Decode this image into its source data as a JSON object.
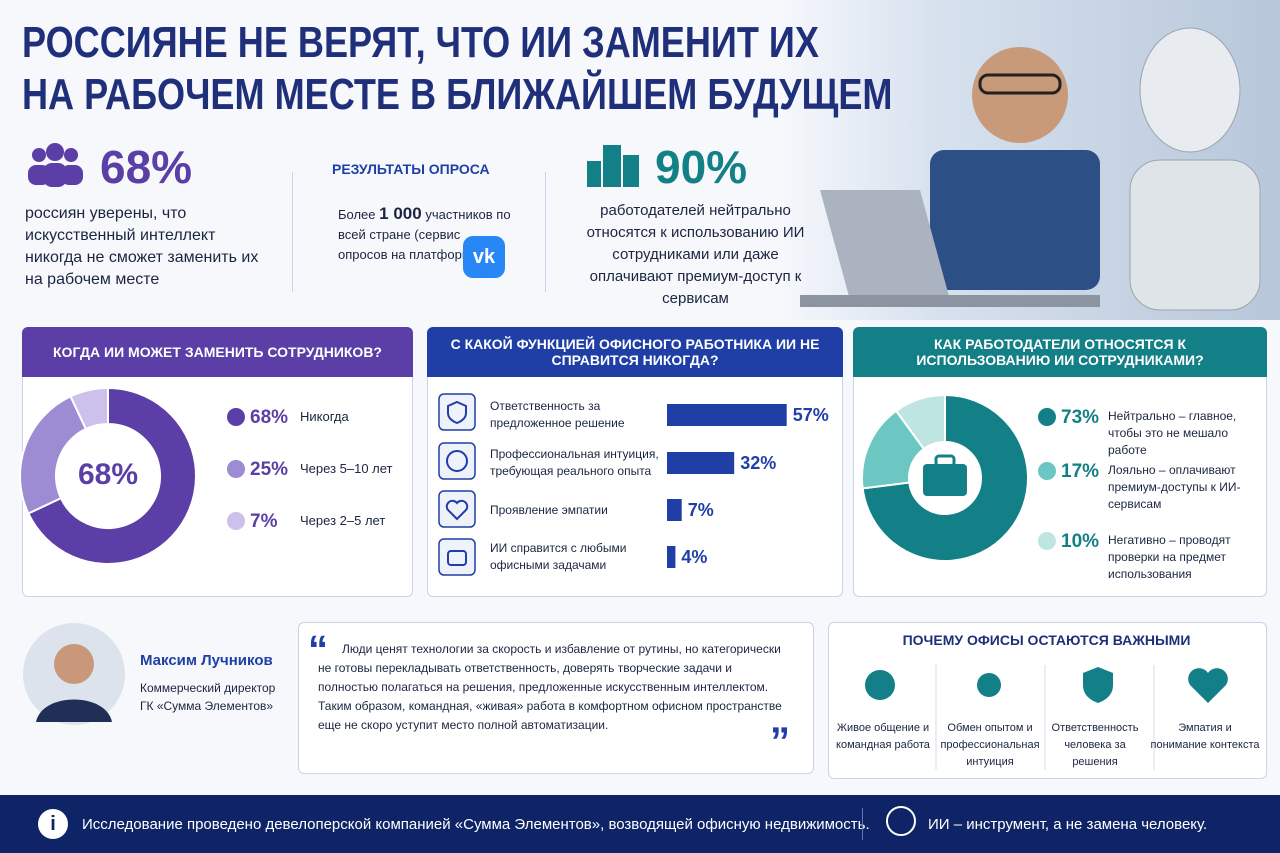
{
  "header": {
    "title_line1": "РОССИЯНЕ НЕ ВЕРЯТ, ЧТО ИИ ЗАМЕНИТ ИХ",
    "title_line2": "НА РАБОЧЕМ МЕСТЕ В БЛИЖАЙШЕМ БУДУЩЕМ"
  },
  "stats": [
    {
      "value_label": "68%",
      "text": "россиян уверены, что искусственный интеллект никогда не сможет заменить их на рабочем месте"
    },
    {
      "value_label": "90%",
      "text": "работодателей нейтрально относятся к использованию ИИ сотрудниками или даже оплачивают премиум-доступ к сервисам"
    }
  ],
  "survey": {
    "title": "РЕЗУЛЬТАТЫ ОПРОСА",
    "text_before": "Более",
    "highlight": "1 000",
    "text_after": "участников по всей стране (сервис опросов на платформе VK)"
  },
  "chart_data": [
    {
      "type": "pie",
      "title": "КОГДА ИИ МОЖЕТ ЗАМЕНИТЬ СОТРУДНИКОВ?",
      "center_label": "68%",
      "categories": [
        "Никогда",
        "Через 5–10 лет",
        "Через 2–5 лет"
      ],
      "values": [
        68,
        25,
        7
      ],
      "value_labels": [
        "68%",
        "25%",
        "7%"
      ],
      "colors": [
        "#5b3fa6",
        "#9d8bd4",
        "#cbc1ea"
      ],
      "header_color": "#5b3fa6"
    },
    {
      "type": "bar",
      "title": "С КАКОЙ ФУНКЦИЕЙ ОФИСНОГО РАБОТНИКА ИИ НЕ СПРАВИТСЯ НИКОГДА?",
      "categories": [
        "Ответственность за предложенное решение",
        "Профессиональная интуиция, требующая реального опыта",
        "Проявление эмпатии",
        "ИИ справится с любыми офисными задачами"
      ],
      "values": [
        57,
        32,
        7,
        4
      ],
      "value_labels": [
        "57%",
        "32%",
        "7%",
        "4%"
      ],
      "color": "#1f3fa6",
      "header_color": "#1f3fa6"
    },
    {
      "type": "pie",
      "title": "КАК РАБОТОДАТЕЛИ ОТНОСЯТСЯ К ИСПОЛЬЗОВАНИЮ ИИ СОТРУДНИКАМИ?",
      "categories": [
        "Нейтрально – главное, чтобы это не мешало работе",
        "Лояльно – оплачивают премиум-доступы к ИИ-сервисам",
        "Негативно – проводят проверки на предмет использования"
      ],
      "values": [
        73,
        17,
        10
      ],
      "value_labels": [
        "73%",
        "17%",
        "10%"
      ],
      "colors": [
        "#137f86",
        "#6cc7c3",
        "#bfe5e2"
      ],
      "header_color": "#137f86"
    }
  ],
  "quote": {
    "name": "Максим Лучников",
    "role": "Коммерческий директор ГК «Сумма Элементов»",
    "text": "Люди ценят технологии за скорость и избавление от рутины, но категорически не готовы перекладывать ответственность, доверять творческие задачи и полностью полагаться на решения, предложенные искусственным интеллектом. Таким образом, командная, «живая» работа в комфортном офисном пространстве еще не скоро уступит место полной автоматизации."
  },
  "offices": {
    "title": "ПОЧЕМУ ОФИСЫ ОСТАЮТСЯ ВАЖНЫМИ",
    "items": [
      "Живое общение и командная работа",
      "Обмен опытом и профессиональная интуиция",
      "Ответственность человека за решения",
      "Эмпатия и понимание контекста"
    ]
  },
  "footer": {
    "note": "Исследование проведено девелоперской компанией «Сумма Элементов», возводящей офисную недвижимость.",
    "slogan": "ИИ – инструмент, а не замена человеку."
  }
}
